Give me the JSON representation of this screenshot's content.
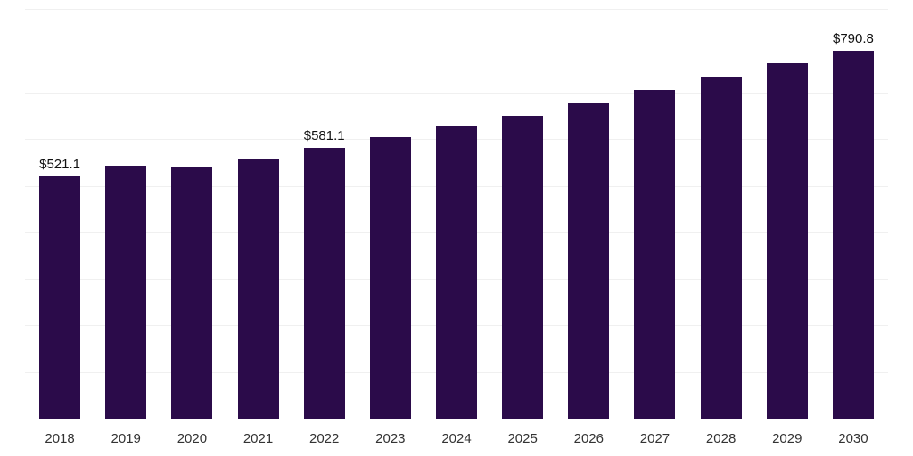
{
  "chart_data": {
    "type": "bar",
    "title": "",
    "xlabel": "",
    "ylabel": "",
    "categories": [
      "2018",
      "2019",
      "2020",
      "2021",
      "2022",
      "2023",
      "2024",
      "2025",
      "2026",
      "2027",
      "2028",
      "2029",
      "2030"
    ],
    "values": [
      521.1,
      543.0,
      541.0,
      557.0,
      581.1,
      604.5,
      627.0,
      650.5,
      677.0,
      705.5,
      733.5,
      763.0,
      790.8
    ],
    "value_labels": [
      {
        "index": 0,
        "text": "$521.1"
      },
      {
        "index": 4,
        "text": "$581.1"
      },
      {
        "index": 12,
        "text": "$790.8"
      }
    ],
    "ylim": [
      0,
      880
    ],
    "grid": true,
    "gridline_step": 100,
    "legend_position": "none",
    "bar_color": "#2b0b4a",
    "gridline_color": "#f0f0f0",
    "axis_line_color": "#c9c9c9",
    "label_color": "#111111",
    "tick_label_color": "#333333"
  }
}
